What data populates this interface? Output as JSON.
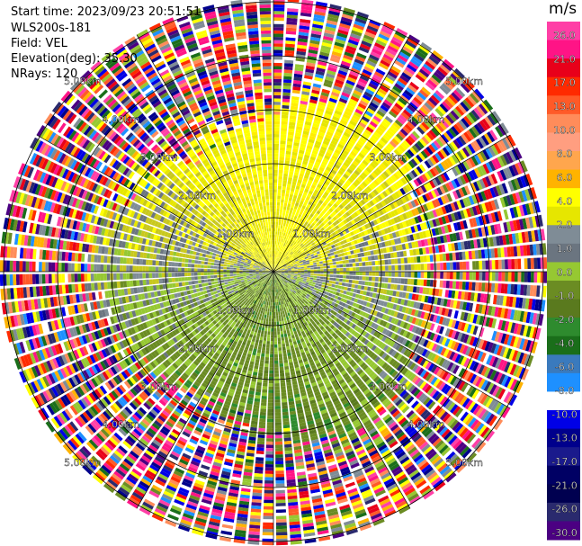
{
  "header": {
    "start_time": "Start time: 2023/09/23 20:51:51",
    "instrument": "WLS200s-181",
    "field": "Field: VEL",
    "elevation": "Elevation(deg): 35.30",
    "nrays": "NRays: 120"
  },
  "colorbar": {
    "unit": "m/s",
    "ticks": [
      "26.0",
      "21.0",
      "17.0",
      "13.0",
      "10.0",
      "8.0",
      "6.0",
      "4.0",
      "2.0",
      "1.0",
      "0.0",
      "-1.0",
      "-2.0",
      "-4.0",
      "-6.0",
      "-8.0",
      "-10.0",
      "-13.0",
      "-17.0",
      "-21.0",
      "-26.0",
      "-30.0"
    ],
    "colors": [
      "#ff3fa6",
      "#ff1486",
      "#e8001a",
      "#ff2a00",
      "#ff5a28",
      "#ff8c5a",
      "#ff9e80",
      "#ffa64d",
      "#ffb300",
      "#ffff00",
      "#e6e600",
      "#7f8c96",
      "#6b7580",
      "#96c832",
      "#6b8c23",
      "#5a7a1e",
      "#2e8b2e",
      "#1a6e1a",
      "#3a7abd",
      "#1e90ff",
      "#ffffff",
      "#0000e6",
      "#00008c",
      "#1a1a8c",
      "#000064",
      "#000050",
      "#2a2a6e",
      "#4b0082"
    ]
  },
  "chart_data": {
    "type": "ppi",
    "title": "",
    "field": "VEL",
    "units": "m/s",
    "nrays": 120,
    "range_rings_km": [
      1.0,
      2.0,
      3.0,
      4.0,
      5.0
    ],
    "ring_labels": [
      "1.00km",
      "2.00km",
      "3.00km",
      "4.00km",
      "5.00km"
    ],
    "value_range": [
      -30,
      30
    ]
  }
}
